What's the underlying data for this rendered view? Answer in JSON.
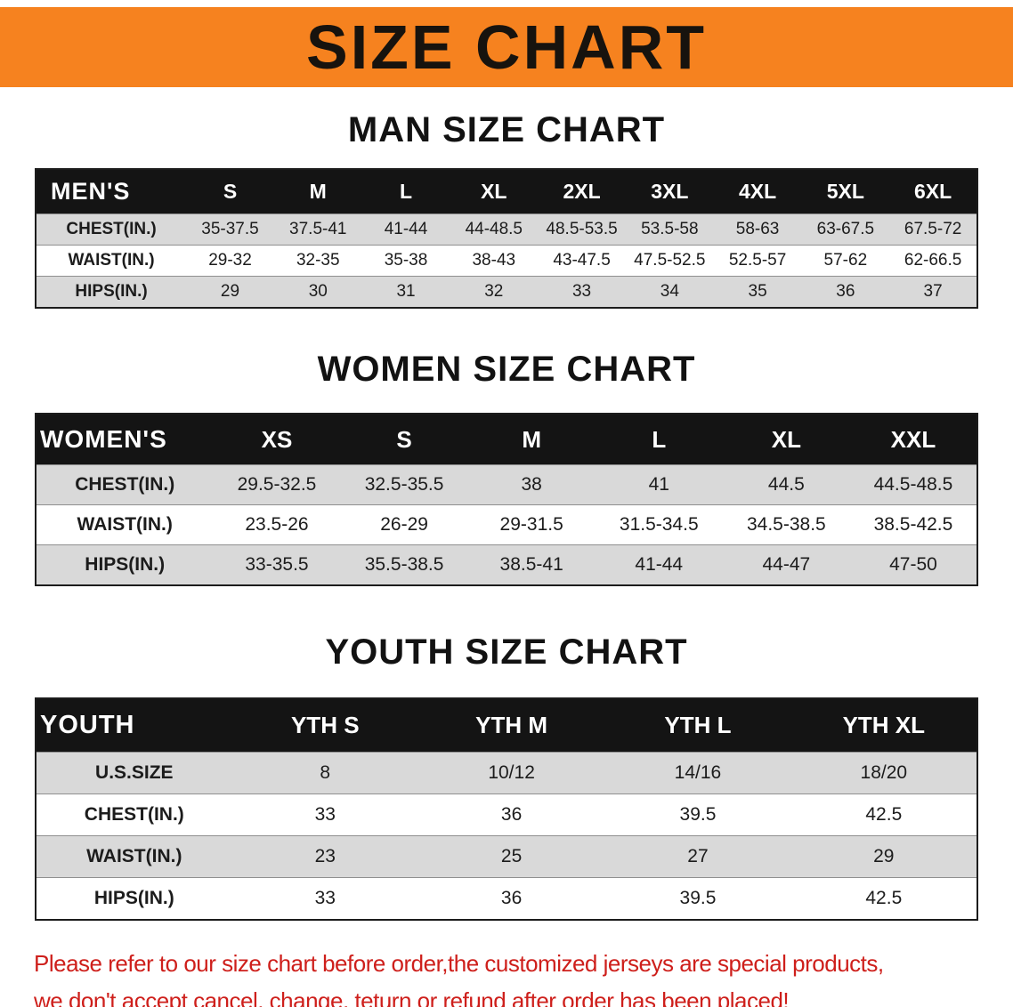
{
  "banner": {
    "title": "SIZE CHART",
    "bg_color": "#F6821F",
    "text_color": "#17130E"
  },
  "colors": {
    "table_header_bg": "#141414",
    "table_header_text": "#FFFFFF",
    "row_stripe": "#D9D9D9",
    "disclaimer_red": "#CE1F1B"
  },
  "disclaimer": {
    "line1": "Please refer to our size chart before order,the customized jerseys are special products,",
    "line2": "we don't accept cancel, change, teturn or refund after order has been placed!"
  },
  "chart_data": [
    {
      "type": "table",
      "title": "MAN SIZE CHART",
      "corner": "MEN'S",
      "columns": [
        "S",
        "M",
        "L",
        "XL",
        "2XL",
        "3XL",
        "4XL",
        "5XL",
        "6XL"
      ],
      "rows": [
        [
          "CHEST(IN.)",
          "35-37.5",
          "37.5-41",
          "41-44",
          "44-48.5",
          "48.5-53.5",
          "53.5-58",
          "58-63",
          "63-67.5",
          "67.5-72"
        ],
        [
          "WAIST(IN.)",
          "29-32",
          "32-35",
          "35-38",
          "38-43",
          "43-47.5",
          "47.5-52.5",
          "52.5-57",
          "57-62",
          "62-66.5"
        ],
        [
          "HIPS(IN.)",
          "29",
          "30",
          "31",
          "32",
          "33",
          "34",
          "35",
          "36",
          "37"
        ]
      ]
    },
    {
      "type": "table",
      "title": "WOMEN SIZE CHART",
      "corner": "WOMEN'S",
      "columns": [
        "XS",
        "S",
        "M",
        "L",
        "XL",
        "XXL"
      ],
      "rows": [
        [
          "CHEST(IN.)",
          "29.5-32.5",
          "32.5-35.5",
          "38",
          "41",
          "44.5",
          "44.5-48.5"
        ],
        [
          "WAIST(IN.)",
          "23.5-26",
          "26-29",
          "29-31.5",
          "31.5-34.5",
          "34.5-38.5",
          "38.5-42.5"
        ],
        [
          "HIPS(IN.)",
          "33-35.5",
          "35.5-38.5",
          "38.5-41",
          "41-44",
          "44-47",
          "47-50"
        ]
      ]
    },
    {
      "type": "table",
      "title": "YOUTH SIZE CHART",
      "corner": "YOUTH",
      "columns": [
        "YTH S",
        "YTH M",
        "YTH L",
        "YTH XL"
      ],
      "rows": [
        [
          "U.S.SIZE",
          "8",
          "10/12",
          "14/16",
          "18/20"
        ],
        [
          "CHEST(IN.)",
          "33",
          "36",
          "39.5",
          "42.5"
        ],
        [
          "WAIST(IN.)",
          "23",
          "25",
          "27",
          "29"
        ],
        [
          "HIPS(IN.)",
          "33",
          "36",
          "39.5",
          "42.5"
        ]
      ]
    }
  ]
}
